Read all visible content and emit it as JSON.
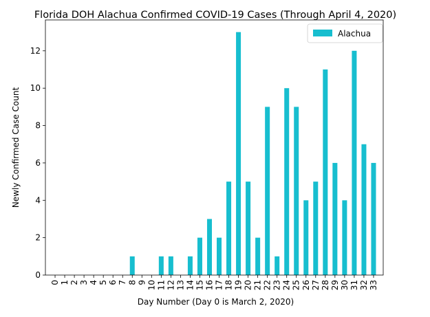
{
  "chart_data": {
    "type": "bar",
    "title": "Florida DOH Alachua Confirmed COVID-19 Cases (Through April 4, 2020)",
    "xlabel": "Day Number (Day 0 is March 2, 2020)",
    "ylabel": "Newly Confirmed Case Count",
    "categories": [
      "0",
      "1",
      "2",
      "3",
      "4",
      "5",
      "6",
      "7",
      "8",
      "9",
      "10",
      "11",
      "12",
      "13",
      "14",
      "15",
      "16",
      "17",
      "18",
      "19",
      "20",
      "21",
      "22",
      "23",
      "24",
      "25",
      "26",
      "27",
      "28",
      "29",
      "30",
      "31",
      "32",
      "33"
    ],
    "series": [
      {
        "name": "Alachua",
        "color": "#17BECF",
        "values": [
          0,
          0,
          0,
          0,
          0,
          0,
          0,
          0,
          1,
          0,
          0,
          1,
          1,
          0,
          1,
          2,
          3,
          2,
          5,
          13,
          5,
          2,
          9,
          1,
          10,
          9,
          4,
          5,
          11,
          6,
          4,
          12,
          7,
          6
        ]
      }
    ],
    "ylim": [
      0,
      13.65
    ],
    "yticks": [
      0,
      2,
      4,
      6,
      8,
      10,
      12
    ],
    "legend": {
      "position": "top-right"
    },
    "grid": false
  }
}
